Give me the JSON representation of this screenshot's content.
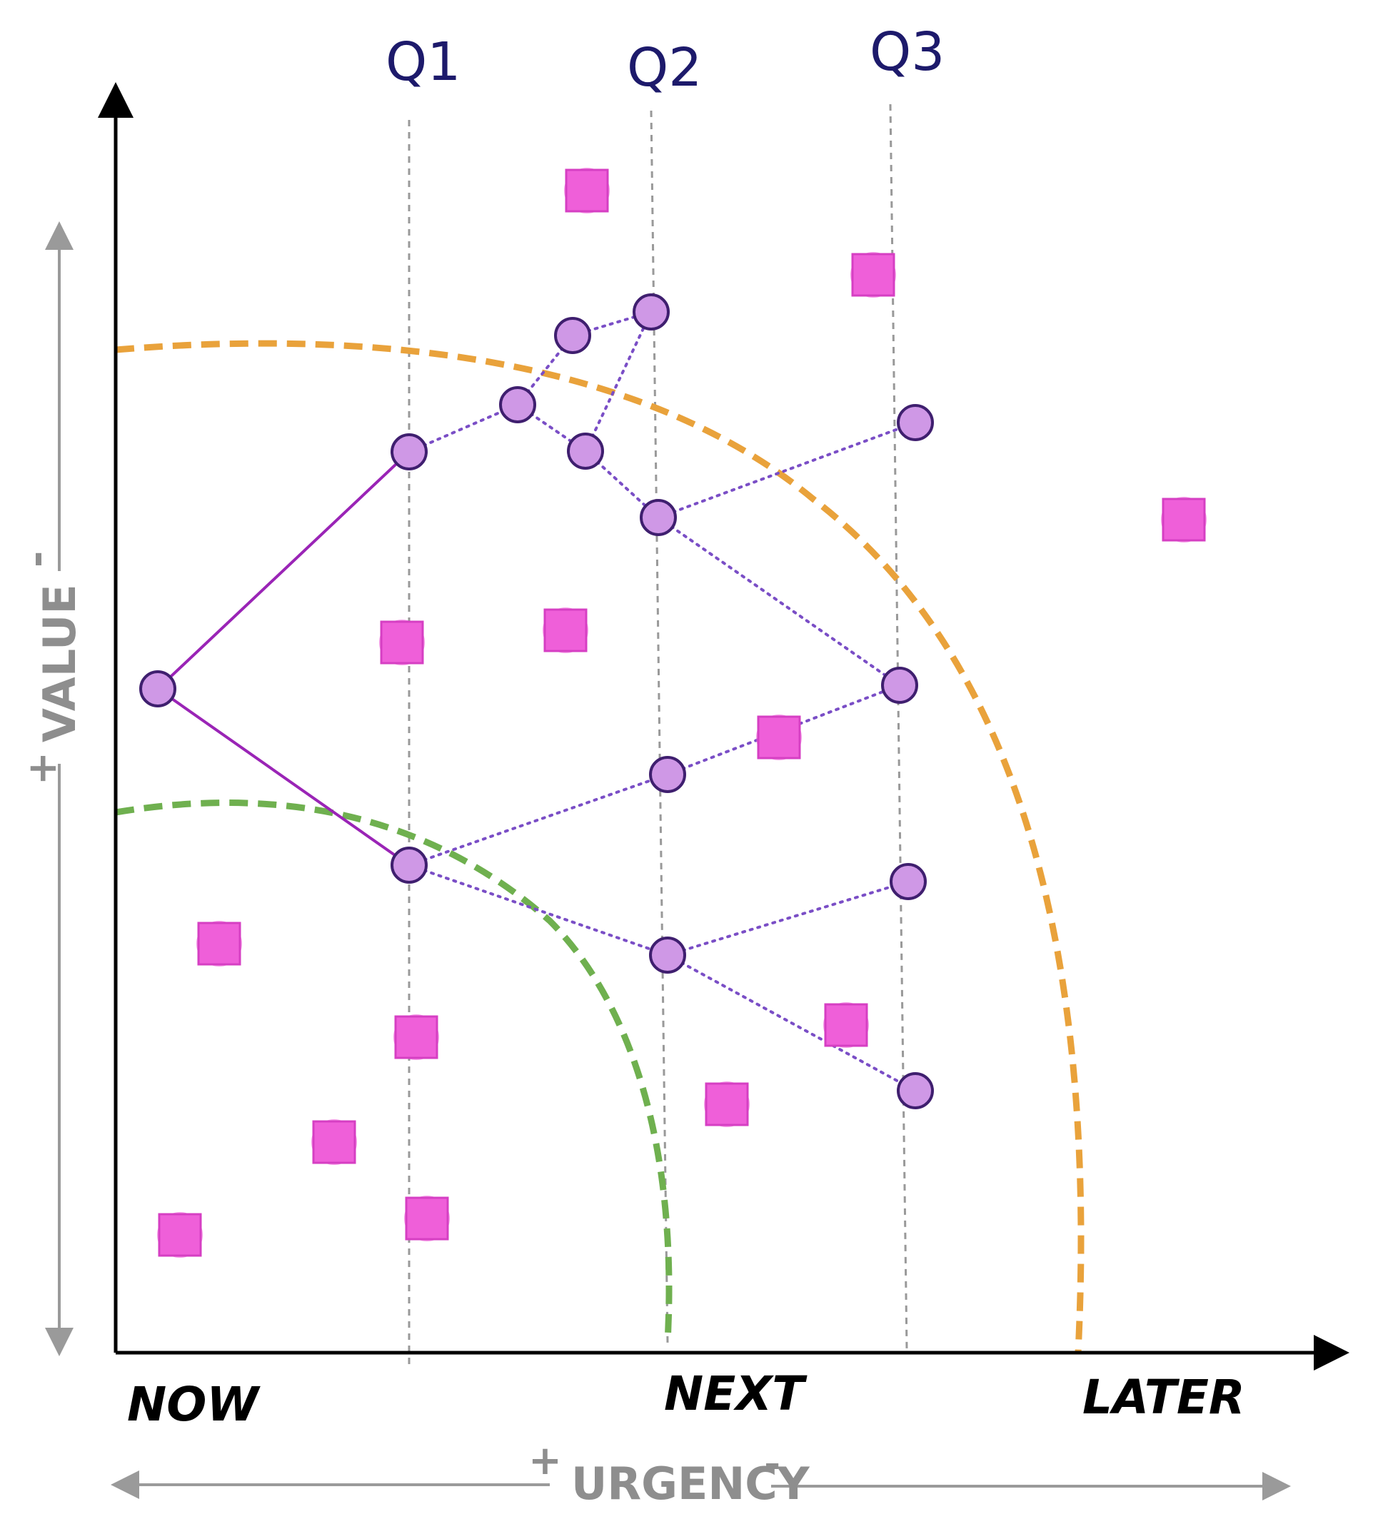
{
  "quarters": [
    {
      "label": "Q1",
      "x": 0
    },
    {
      "label": "Q2",
      "x": 1
    },
    {
      "label": "Q3",
      "x": 2
    }
  ],
  "stages": {
    "now": "NOW",
    "next": "NEXT",
    "later": "LATER"
  },
  "axes": {
    "urgency": {
      "title": "URGENCY",
      "plus": "+",
      "minus": "-"
    },
    "value": {
      "title": "VALUE",
      "plus": "+",
      "minus": "-"
    }
  },
  "colors": {
    "square_fill": "#ef5fd9",
    "square_stroke": "#d63fc3",
    "node_fill": "#cf98e6",
    "node_stroke": "#3f1f6f",
    "edge_solid": "#9a24b6",
    "edge_dotted": "#7a4ec6",
    "horizon_near": "#6fb04f",
    "horizon_far": "#e9a23b",
    "gridline": "#999999",
    "axis": "#000000",
    "axis_secondary": "#9a9a9a",
    "quarter_text": "#1d1a6b"
  }
}
